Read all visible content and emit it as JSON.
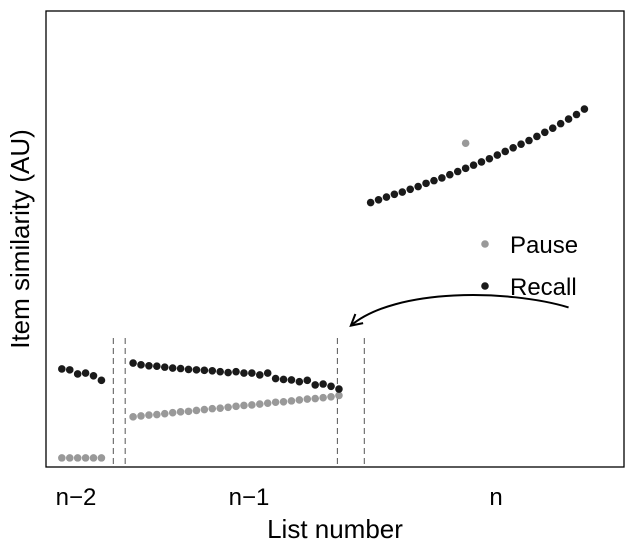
{
  "chart_data": {
    "type": "scatter",
    "title": "",
    "xlabel": "List number",
    "ylabel": "Item similarity (AU)",
    "x_tick_labels": [
      "n−2",
      "n−1",
      "n"
    ],
    "legend": {
      "placement": "right",
      "entries": [
        {
          "label": "Pause",
          "color": "#999999"
        },
        {
          "label": "Recall",
          "color": "#1a1a1a"
        }
      ]
    },
    "series": [
      {
        "name": "Pause",
        "color": "#999999",
        "segments": [
          {
            "list": "n−2",
            "x": [
              1,
              2,
              3,
              4,
              5,
              6
            ],
            "y": [
              0.02,
              0.02,
              0.02,
              0.02,
              0.02,
              0.02
            ]
          },
          {
            "list": "n−1",
            "x": [
              10,
              11,
              12,
              13,
              14,
              15,
              16,
              17,
              18,
              19,
              20,
              21,
              22,
              23,
              24,
              25,
              26,
              27,
              28,
              29,
              30,
              31,
              32,
              33,
              34,
              35,
              36
            ],
            "y": [
              0.11,
              0.112,
              0.114,
              0.115,
              0.117,
              0.119,
              0.121,
              0.122,
              0.124,
              0.126,
              0.128,
              0.129,
              0.131,
              0.133,
              0.135,
              0.136,
              0.138,
              0.14,
              0.142,
              0.143,
              0.145,
              0.147,
              0.149,
              0.15,
              0.152,
              0.154,
              0.157
            ]
          },
          {
            "list": "n",
            "x": [
              52
            ],
            "y": [
              0.71
            ]
          }
        ]
      },
      {
        "name": "Recall",
        "color": "#1a1a1a",
        "segments": [
          {
            "list": "n−2",
            "x": [
              1,
              2,
              3,
              4,
              5,
              6
            ],
            "y": [
              0.215,
              0.213,
              0.204,
              0.206,
              0.2,
              0.19
            ]
          },
          {
            "list": "n−1",
            "x": [
              10,
              11,
              12,
              13,
              14,
              15,
              16,
              17,
              18,
              19,
              20,
              21,
              22,
              23,
              24,
              25,
              26,
              27,
              28,
              29,
              30,
              31,
              32,
              33,
              34,
              35,
              36
            ],
            "y": [
              0.228,
              0.224,
              0.222,
              0.221,
              0.219,
              0.217,
              0.216,
              0.214,
              0.213,
              0.212,
              0.211,
              0.209,
              0.207,
              0.209,
              0.206,
              0.206,
              0.202,
              0.206,
              0.194,
              0.192,
              0.191,
              0.187,
              0.19,
              0.18,
              0.182,
              0.177,
              0.171
            ]
          },
          {
            "list": "n",
            "x": [
              40,
              41,
              42,
              43,
              44,
              45,
              46,
              47,
              48,
              49,
              50,
              51,
              52,
              53,
              54,
              55,
              56,
              57,
              58,
              59,
              60,
              61,
              62,
              63,
              64,
              65,
              66,
              67
            ],
            "y": [
              0.58,
              0.586,
              0.592,
              0.598,
              0.603,
              0.609,
              0.615,
              0.622,
              0.628,
              0.634,
              0.641,
              0.648,
              0.655,
              0.662,
              0.669,
              0.676,
              0.684,
              0.692,
              0.7,
              0.708,
              0.716,
              0.725,
              0.734,
              0.743,
              0.753,
              0.763,
              0.773,
              0.785
            ]
          }
        ]
      }
    ],
    "list_boundaries": [
      7.5,
      9,
      35.8,
      39.2
    ],
    "annotation": {
      "type": "curved-arrow",
      "from_x": 65,
      "from_y": 0.35,
      "to_x": 37.5,
      "to_y": 0.31
    },
    "xlim": [
      -1,
      72
    ],
    "ylim": [
      0,
      1
    ],
    "grid": false
  }
}
